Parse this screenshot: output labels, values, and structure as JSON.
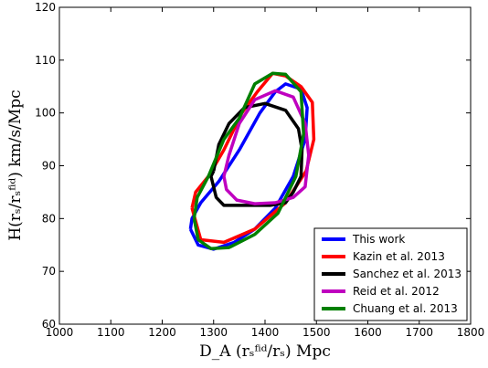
{
  "chart_data": {
    "type": "line",
    "x_label": "D_A (rₛᶠⁱᵈ/rₛ) Mpc",
    "y_label": "H(rₛ/rₛᶠⁱᵈ) km/s/Mpc",
    "xlim": [
      1000,
      1800
    ],
    "xticks": [
      1000,
      1100,
      1200,
      1300,
      1400,
      1500,
      1600,
      1700,
      1800
    ],
    "ylim": [
      60,
      120
    ],
    "yticks": [
      60,
      70,
      80,
      90,
      100,
      110,
      120
    ],
    "legend": "lower right",
    "series": [
      {
        "name": "This work",
        "color": "#0000ff",
        "x": [
          1255,
          1270,
          1300,
          1340,
          1380,
          1420,
          1455,
          1478,
          1482,
          1470,
          1440,
          1420,
          1390,
          1350,
          1310,
          1275,
          1258,
          1255
        ],
        "values": [
          78,
          75,
          74.2,
          75.5,
          78,
          82,
          88,
          95,
          101,
          104.5,
          105.5,
          104,
          100,
          93,
          87,
          83,
          80,
          78
        ]
      },
      {
        "name": "Kazin et al. 2013",
        "color": "#ff0000",
        "x": [
          1258,
          1275,
          1320,
          1380,
          1440,
          1480,
          1495,
          1492,
          1470,
          1440,
          1415,
          1385,
          1355,
          1320,
          1290,
          1265,
          1258
        ],
        "values": [
          82,
          76,
          75.5,
          78,
          83,
          89,
          95,
          102,
          105,
          107,
          107.5,
          104,
          100,
          93,
          88,
          85,
          82
        ]
      },
      {
        "name": "Sanchez et al. 2013",
        "color": "#000000",
        "x": [
          1300,
          1310,
          1330,
          1360,
          1400,
          1440,
          1465,
          1472,
          1470,
          1455,
          1440,
          1410,
          1350,
          1320,
          1305,
          1295,
          1300
        ],
        "values": [
          89,
          94,
          98,
          101,
          101.8,
          100.5,
          97,
          93,
          88,
          85,
          83,
          82.5,
          82.5,
          82.5,
          84,
          88,
          89
        ]
      },
      {
        "name": "Reid et al. 2012",
        "color": "#bf00bf",
        "x": [
          1320,
          1330,
          1350,
          1380,
          1420,
          1455,
          1478,
          1485,
          1478,
          1455,
          1420,
          1380,
          1345,
          1325,
          1320
        ],
        "values": [
          88,
          92,
          98,
          102.5,
          104.2,
          103,
          98,
          92,
          86,
          84,
          83,
          82.8,
          83.5,
          85.5,
          88
        ]
      },
      {
        "name": "Chuang et al. 2013",
        "color": "#008000",
        "x": [
          1262,
          1270,
          1295,
          1330,
          1380,
          1425,
          1460,
          1475,
          1470,
          1440,
          1415,
          1380,
          1350,
          1320,
          1290,
          1268,
          1262
        ],
        "values": [
          80,
          76,
          74.3,
          74.5,
          77,
          81,
          88,
          96,
          104,
          107.3,
          107.5,
          105.5,
          99,
          95,
          88,
          84,
          80
        ]
      }
    ]
  }
}
